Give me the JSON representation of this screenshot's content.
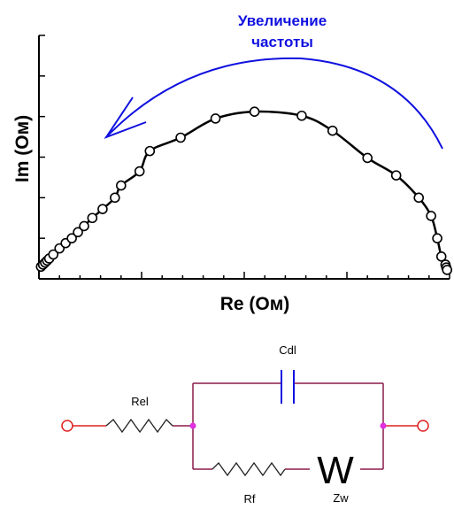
{
  "colors": {
    "annotation": "#1010e0",
    "wire": "#8b1a4a",
    "resistor": "#222222",
    "terminal": "#e02020",
    "node": "#e030e0",
    "axis": "#000000"
  },
  "chart_data": {
    "type": "scatter",
    "title": "",
    "xlabel": "Re (Ом)",
    "ylabel": "Im (Ом)",
    "xlim": [
      0,
      10
    ],
    "ylim": [
      0,
      6
    ],
    "grid": false,
    "annotation": {
      "text_line1": "Увеличение",
      "text_line2": "частоты"
    },
    "series": [
      {
        "x": [
          0.05,
          0.1,
          0.15,
          0.2,
          0.25,
          0.35,
          0.5,
          0.65,
          0.8,
          0.95,
          1.1,
          1.3,
          1.55,
          1.85,
          2.0,
          2.45,
          2.7,
          3.45,
          4.3,
          5.25,
          6.4,
          7.15,
          8.0,
          8.7,
          9.25,
          9.55,
          9.7,
          9.8,
          9.9,
          9.92,
          9.94
        ],
        "y": [
          0.3,
          0.35,
          0.4,
          0.45,
          0.5,
          0.6,
          0.75,
          0.88,
          1.0,
          1.15,
          1.3,
          1.5,
          1.72,
          2.0,
          2.3,
          2.65,
          3.15,
          3.48,
          3.95,
          4.12,
          4.02,
          3.65,
          2.98,
          2.55,
          2.0,
          1.55,
          1.0,
          0.55,
          0.35,
          0.28,
          0.22
        ]
      }
    ]
  },
  "circuit": {
    "cdl_label": "Cdl",
    "rel_label": "Rel",
    "rf_label": "Rf",
    "zw_label": "Zw",
    "w_symbol": "W"
  }
}
